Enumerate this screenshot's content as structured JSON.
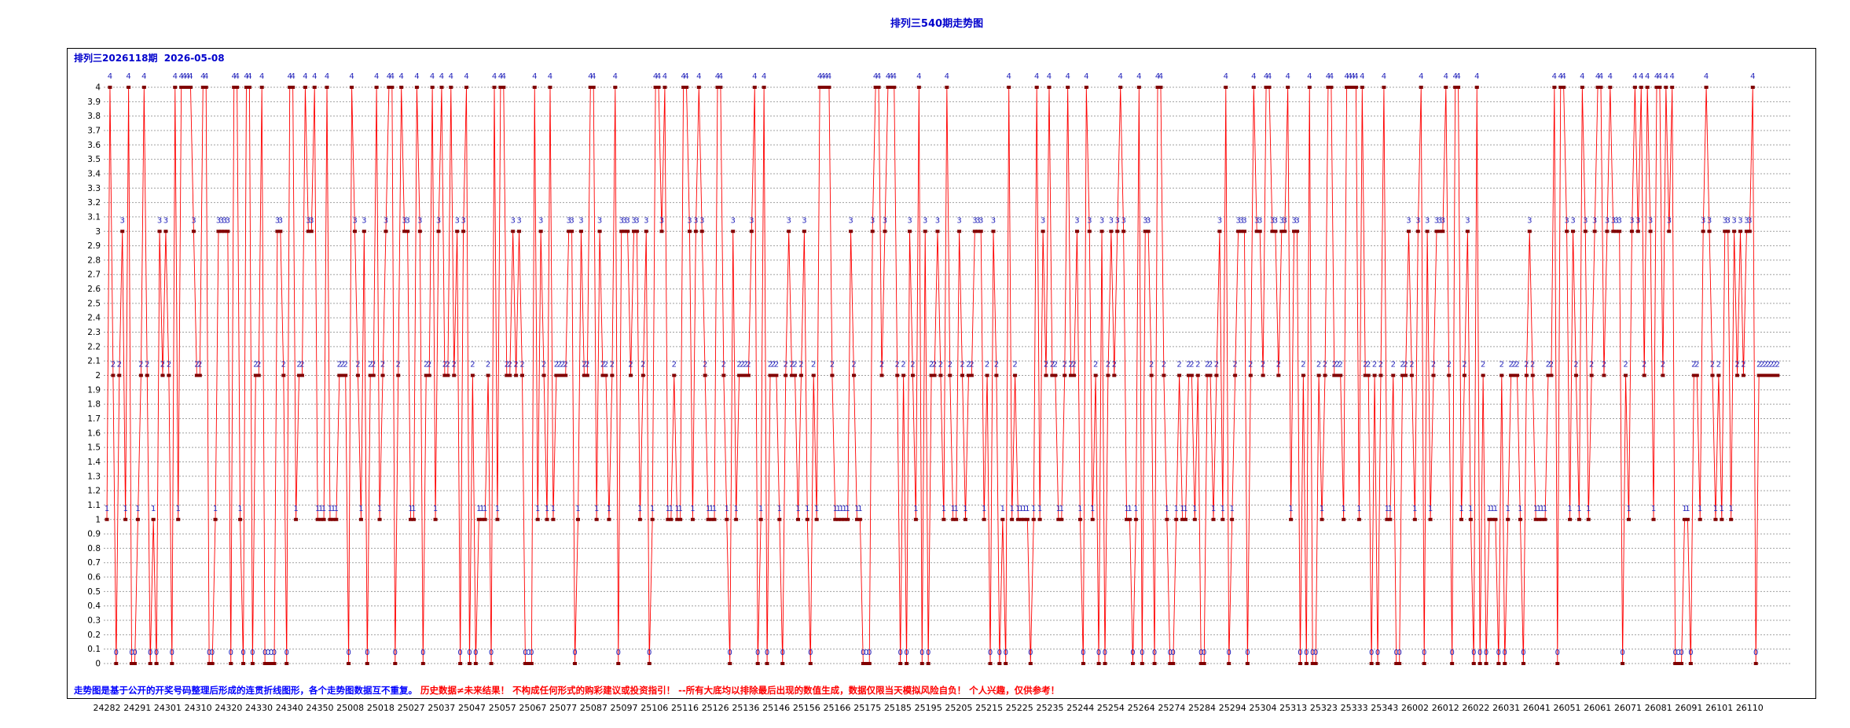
{
  "chart_data": {
    "type": "line",
    "title": "排列三540期走势图",
    "subtitle": "排列三2026118期  2026-05-08",
    "xlabel": "",
    "ylabel": "",
    "ylim": [
      0,
      4
    ],
    "grid": true,
    "legend": "none",
    "point_labels": true,
    "y_tick_labels": [
      "0",
      "0.1",
      "0.2",
      "0.3",
      "0.4",
      "0.5",
      "0.6",
      "0.7",
      "0.8",
      "0.9",
      "1",
      "1.1",
      "1.2",
      "1.3",
      "1.4",
      "1.5",
      "1.6",
      "1.7",
      "1.8",
      "1.9",
      "2",
      "2.1",
      "2.2",
      "2.3",
      "2.4",
      "2.5",
      "2.6",
      "2.7",
      "2.8",
      "2.9",
      "3",
      "3.1",
      "3.2",
      "3.3",
      "3.4",
      "3.5",
      "3.6",
      "3.7",
      "3.8",
      "3.9",
      "4"
    ],
    "x_tick_labels": [
      "24282",
      "24291",
      "24301",
      "24310",
      "24320",
      "24330",
      "24340",
      "24350",
      "25008",
      "25018",
      "25027",
      "25037",
      "25047",
      "25057",
      "25067",
      "25077",
      "25087",
      "25097",
      "25106",
      "25116",
      "25126",
      "25136",
      "25146",
      "25156",
      "25166",
      "25175",
      "25185",
      "25195",
      "25205",
      "25215",
      "25225",
      "25235",
      "25244",
      "25254",
      "25264",
      "25274",
      "25284",
      "25294",
      "25304",
      "25313",
      "25323",
      "25333",
      "25343",
      "26002",
      "26012",
      "26022",
      "26031",
      "26041",
      "26051",
      "26061",
      "26071",
      "26081",
      "26091",
      "26101",
      "26110"
    ],
    "values": [
      1,
      4,
      2,
      0,
      2,
      3,
      1,
      4,
      0,
      0,
      1,
      2,
      4,
      2,
      0,
      1,
      0,
      3,
      2,
      3,
      2,
      0,
      4,
      1,
      4,
      4,
      4,
      4,
      3,
      2,
      2,
      4,
      4,
      0,
      0,
      1,
      3,
      3,
      3,
      3,
      0,
      4,
      4,
      1,
      0,
      4,
      4,
      0,
      2,
      2,
      4,
      0,
      0,
      0,
      0,
      3,
      3,
      2,
      0,
      4,
      4,
      1,
      2,
      2,
      4,
      3,
      3,
      4,
      1,
      1,
      1,
      4,
      1,
      1,
      1,
      2,
      2,
      2,
      0,
      4,
      3,
      2,
      1,
      3,
      0,
      2,
      2,
      4,
      1,
      2,
      3,
      4,
      4,
      0,
      2,
      4,
      3,
      3,
      1,
      1,
      4,
      3,
      0,
      2,
      2,
      4,
      1,
      3,
      4,
      2,
      2,
      4,
      2,
      3,
      0,
      3,
      4,
      0,
      2,
      0,
      1,
      1,
      1,
      2,
      0,
      4,
      1,
      4,
      4,
      2,
      2,
      3,
      2,
      3,
      2,
      0,
      0,
      0,
      4,
      1,
      3,
      2,
      1,
      4,
      1,
      2,
      2,
      2,
      2,
      3,
      3,
      0,
      1,
      3,
      2,
      2,
      4,
      4,
      1,
      3,
      2,
      2,
      1,
      2,
      4,
      0,
      3,
      3,
      3,
      2,
      3,
      3,
      1,
      2,
      3,
      0,
      1,
      4,
      4,
      3,
      4,
      1,
      1,
      2,
      1,
      1,
      4,
      4,
      3,
      1,
      3,
      4,
      3,
      2,
      1,
      1,
      1,
      4,
      4,
      2,
      1,
      0,
      3,
      1,
      2,
      2,
      2,
      2,
      3,
      4,
      0,
      1,
      4,
      0,
      2,
      2,
      2,
      1,
      0,
      2,
      3,
      2,
      2,
      1,
      2,
      3,
      1,
      0,
      2,
      1,
      4,
      4,
      4,
      4,
      2,
      1,
      1,
      1,
      1,
      1,
      3,
      2,
      1,
      1,
      0,
      0,
      0,
      3,
      4,
      4,
      2,
      3,
      4,
      4,
      4,
      2,
      0,
      2,
      0,
      3,
      2,
      1,
      4,
      0,
      3,
      0,
      2,
      2,
      3,
      2,
      1,
      4,
      2,
      1,
      1,
      3,
      2,
      1,
      2,
      2,
      3,
      3,
      3,
      1,
      2,
      0,
      3,
      2,
      0,
      1,
      0,
      4,
      1,
      2,
      1,
      1,
      1,
      1,
      0,
      1,
      4,
      1,
      3,
      2,
      4,
      2,
      2,
      1,
      1,
      2,
      4,
      2,
      2,
      3,
      1,
      0,
      4,
      3,
      1,
      2,
      0,
      3,
      0,
      2,
      3,
      2,
      3,
      4,
      3,
      1,
      1,
      0,
      1,
      4,
      0,
      3,
      3,
      2,
      0,
      4,
      4,
      2,
      1,
      0,
      0,
      1,
      2,
      1,
      1,
      2,
      2,
      1,
      2,
      0,
      0,
      2,
      2,
      1,
      2,
      3,
      1,
      4,
      0,
      1,
      2,
      3,
      3,
      3,
      0,
      2,
      4,
      3,
      3,
      2,
      4,
      4,
      3,
      3,
      2,
      3,
      3,
      4,
      1,
      3,
      3,
      0,
      2,
      0,
      4,
      0,
      0,
      2,
      1,
      2,
      4,
      4,
      2,
      2,
      2,
      1,
      4,
      4,
      4,
      4,
      1,
      4,
      2,
      2,
      0,
      2,
      0,
      2,
      4,
      1,
      1,
      2,
      0,
      0,
      2,
      2,
      3,
      2,
      1,
      3,
      4,
      0,
      3,
      1,
      2,
      3,
      3,
      3,
      4,
      2,
      0,
      4,
      4,
      1,
      2,
      3,
      1,
      0,
      4,
      0,
      2,
      0,
      1,
      1,
      1,
      0,
      2,
      0,
      1,
      2,
      2,
      2,
      1,
      0,
      2,
      3,
      2,
      1,
      1,
      1,
      1,
      2,
      2,
      4,
      0,
      4,
      4,
      3,
      1,
      3,
      2,
      1,
      4,
      3,
      1,
      2,
      3,
      4,
      4,
      2,
      3,
      4,
      3,
      3,
      3,
      0,
      2,
      1,
      3,
      4,
      3,
      4,
      2,
      4,
      3,
      1,
      4,
      4,
      2,
      4,
      3,
      4,
      0,
      0,
      0,
      1,
      1,
      0,
      2,
      2,
      1,
      3,
      4,
      3,
      2,
      1,
      2,
      1,
      3,
      3,
      1,
      3,
      2,
      3,
      2,
      3,
      3,
      4,
      0,
      2,
      2,
      2,
      2,
      2,
      2,
      2
    ],
    "colors": {
      "title": "#0000cc",
      "line": "#ff0000",
      "marker": "#800000",
      "point_label": "#2222bb",
      "grid": "#a0a0a0",
      "axis_text": "#000000"
    }
  },
  "footer": {
    "note_blue": "走势图是基于公开的开奖号码整理后形成的连贯折线图形，各个走势图数据互不重复。 ",
    "note_red": "历史数据≠未来结果！ 不构成任何形式的购彩建议或投资指引！ --所有大底均以排除最后出现的数值生成，数据仅限当天模拟风险自负！ 个人兴趣，仅供参考！",
    "note_blue_color": "#0000ff",
    "note_red_color": "#ff0000"
  }
}
